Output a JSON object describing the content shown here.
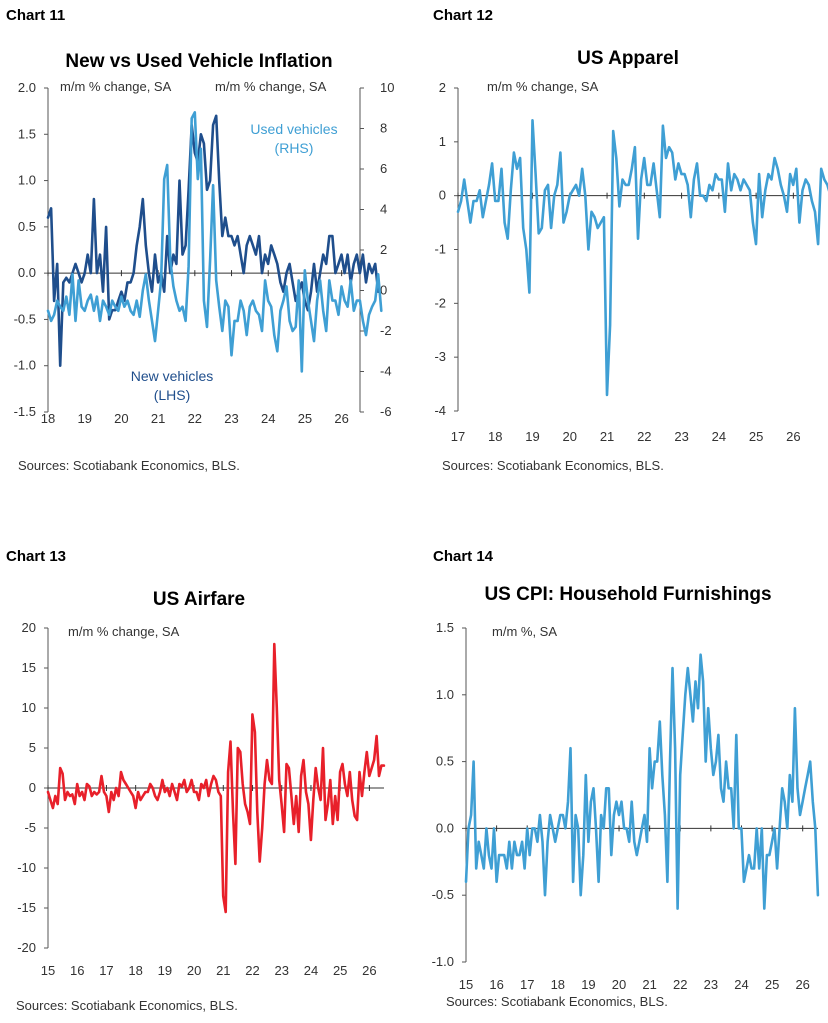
{
  "chart_data": [
    {
      "type": "line",
      "chart_number": "Chart 11",
      "title": "New vs Used Vehicle Inflation",
      "left_unit": "m/m % change, SA",
      "right_unit": "m/m % change, SA",
      "source": "Sources: Scotiabank Economics, BLS.",
      "xlim": [
        2018,
        2026.5
      ],
      "x_ticks": [
        18,
        19,
        20,
        21,
        22,
        23,
        24,
        25,
        26
      ],
      "ylim": [
        -1.5,
        2.0
      ],
      "y_ticks": [
        "2.0",
        "1.5",
        "1.0",
        "0.5",
        "0.0",
        "-0.5",
        "-1.0",
        "-1.5"
      ],
      "y2lim": [
        -6,
        10
      ],
      "y2_ticks": [
        "10",
        "8",
        "6",
        "4",
        "2",
        "0",
        "-2",
        "-4",
        "-6"
      ],
      "series": [
        {
          "name": "New vehicles",
          "label_lines": [
            "New vehicles",
            "(LHS)"
          ],
          "axis": "left",
          "color": "#1f4e8c",
          "x_start": 2018.0,
          "x_step": 0.0833,
          "values": [
            0.6,
            0.7,
            -0.3,
            0.1,
            -1.0,
            -0.1,
            -0.05,
            -0.1,
            0.0,
            0.1,
            0.0,
            -0.1,
            0.0,
            0.2,
            0.0,
            0.8,
            0.0,
            0.2,
            -0.2,
            0.5,
            -0.5,
            -0.4,
            -0.4,
            -0.3,
            -0.2,
            -0.3,
            -0.1,
            -0.1,
            0.0,
            0.3,
            0.5,
            0.8,
            0.3,
            0.0,
            -0.2,
            0.2,
            -0.1,
            0.0,
            -0.2,
            0.4,
            0.0,
            0.2,
            0.1,
            1.0,
            0.2,
            0.3,
            0.9,
            1.6,
            1.3,
            1.2,
            1.5,
            1.4,
            0.9,
            1.0,
            1.6,
            1.7,
            1.0,
            0.4,
            0.6,
            0.4,
            0.4,
            0.3,
            0.4,
            0.2,
            0.0,
            0.3,
            0.4,
            0.3,
            0.2,
            0.4,
            0.0,
            0.2,
            0.1,
            0.3,
            0.2,
            0.1,
            -0.1,
            -0.2,
            0.0,
            0.1,
            -0.1,
            -0.3,
            -0.2,
            -0.1,
            -0.3,
            -0.4,
            -0.2,
            0.1,
            -0.2,
            0.0,
            0.2,
            0.1,
            0.4,
            0.4,
            0.0,
            0.1,
            0.2,
            0.0,
            0.2,
            -0.1,
            0.1,
            0.2,
            0.0,
            0.2,
            -0.1,
            0.1,
            0.0,
            0.1,
            -0.2
          ]
        },
        {
          "name": "Used vehicles",
          "label_lines": [
            "Used vehicles",
            "(RHS)"
          ],
          "axis": "right",
          "color": "#3f9fd4",
          "x_start": 2018.0,
          "x_step": 0.0833,
          "values": [
            -1.0,
            -1.5,
            -1.2,
            -0.5,
            -0.8,
            -1.0,
            -0.3,
            -1.2,
            0.8,
            -1.5,
            0.5,
            -0.8,
            -1.0,
            -0.5,
            -0.2,
            -1.0,
            -0.3,
            -1.5,
            -0.5,
            -0.8,
            -1.2,
            -0.5,
            -0.8,
            -1.0,
            -0.3,
            -0.8,
            -0.5,
            -1.0,
            -1.2,
            -0.5,
            -1.3,
            0.0,
            0.8,
            -0.5,
            -1.5,
            -2.5,
            -1.0,
            0.5,
            5.5,
            6.2,
            1.5,
            0.2,
            -0.5,
            -1.0,
            -0.8,
            -1.5,
            1.2,
            8.5,
            8.8,
            5.5,
            7.0,
            -0.5,
            -1.8,
            1.5,
            5.2,
            0.5,
            -0.8,
            -2.0,
            -0.5,
            -0.8,
            -3.2,
            -1.5,
            -1.5,
            -0.5,
            -1.0,
            -2.2,
            -0.8,
            -0.5,
            -1.0,
            -1.2,
            -2.0,
            0.5,
            -0.5,
            -0.8,
            -2.2,
            -3.0,
            -1.0,
            -0.5,
            0.2,
            -1.5,
            -2.0,
            -1.8,
            0.5,
            -4.0,
            1.0,
            -0.5,
            -1.5,
            -2.5,
            -0.5,
            0.5,
            -1.0,
            -2.0,
            0.5,
            -0.5,
            -0.5,
            -1.2,
            0.2,
            -0.5,
            -0.8,
            0.5,
            -1.0,
            -0.5,
            -0.5,
            -1.5,
            -2.2,
            -1.2,
            -0.8,
            -0.5,
            0.8,
            -1.0
          ]
        }
      ]
    },
    {
      "type": "line",
      "chart_number": "Chart 12",
      "title": "US Apparel",
      "left_unit": "m/m % change, SA",
      "source": "Sources: Scotiabank Economics, BLS.",
      "xlim": [
        2017,
        2026.5
      ],
      "x_ticks": [
        17,
        18,
        19,
        20,
        21,
        22,
        23,
        24,
        25,
        26
      ],
      "ylim": [
        -4,
        2
      ],
      "y_ticks": [
        "2",
        "1",
        "0",
        "-1",
        "-2",
        "-3",
        "-4"
      ],
      "series": [
        {
          "name": "",
          "color": "#3f9fd4",
          "x_start": 2017.0,
          "x_step": 0.0833,
          "values": [
            -0.3,
            -0.1,
            0.3,
            -0.1,
            -0.5,
            -0.1,
            -0.1,
            0.1,
            -0.4,
            -0.1,
            0.2,
            0.6,
            -0.1,
            -0.1,
            0.5,
            -0.5,
            -0.8,
            0.1,
            0.8,
            0.5,
            0.7,
            -0.6,
            -1.0,
            -1.8,
            1.4,
            0.4,
            -0.7,
            -0.6,
            0.1,
            0.2,
            -0.6,
            0.0,
            0.2,
            0.8,
            -0.5,
            -0.3,
            0.0,
            0.1,
            0.2,
            0.0,
            0.5,
            0.0,
            -1.0,
            -0.3,
            -0.4,
            -0.6,
            -0.5,
            -0.4,
            -3.7,
            -2.4,
            1.2,
            0.7,
            -0.2,
            0.3,
            0.2,
            0.2,
            0.5,
            0.9,
            -0.8,
            0.3,
            0.7,
            0.2,
            0.2,
            0.6,
            0.1,
            -0.4,
            1.3,
            0.7,
            0.9,
            0.8,
            0.3,
            0.6,
            0.4,
            0.4,
            0.2,
            -0.4,
            0.3,
            0.6,
            0.0,
            0.0,
            -0.1,
            0.2,
            0.1,
            0.4,
            0.3,
            0.3,
            -0.3,
            0.6,
            0.1,
            0.4,
            0.3,
            0.1,
            0.3,
            0.2,
            0.1,
            -0.5,
            -0.9,
            0.4,
            -0.4,
            0.1,
            0.4,
            0.3,
            0.7,
            0.5,
            0.2,
            0.0,
            -0.3,
            0.4,
            0.2,
            0.5,
            -0.5,
            0.1,
            0.3,
            0.2,
            -0.1,
            -0.3,
            -0.9,
            0.5,
            0.3,
            0.2,
            0.0,
            0.3,
            0.0,
            -0.2,
            0.2,
            0.5,
            0.4,
            0.3,
            0.4,
            0.3,
            1.3,
            1.0,
            0.6
          ]
        }
      ]
    },
    {
      "type": "line",
      "chart_number": "Chart 13",
      "title": "US Airfare",
      "left_unit": "m/m % change, SA",
      "source": "Sources: Scotiabank Economics, BLS.",
      "xlim": [
        2015,
        2026.5
      ],
      "x_ticks": [
        15,
        16,
        17,
        18,
        19,
        20,
        21,
        22,
        23,
        24,
        25,
        26
      ],
      "ylim": [
        -20,
        20
      ],
      "y_ticks": [
        "20",
        "15",
        "10",
        "5",
        "0",
        "-5",
        "-10",
        "-15",
        "-20"
      ],
      "series": [
        {
          "name": "",
          "color": "#e8202a",
          "x_start": 2015.0,
          "x_step": 0.0833,
          "values": [
            -0.5,
            -1.5,
            -2.5,
            -1.0,
            -2.0,
            2.5,
            1.8,
            -1.5,
            -0.5,
            -1.0,
            -0.8,
            -2.0,
            0.5,
            -1.0,
            -0.5,
            -1.5,
            0.5,
            0.2,
            -1.0,
            -0.5,
            -0.8,
            -0.5,
            1.5,
            -0.5,
            -1.0,
            -3.0,
            -0.5,
            -1.5,
            0.0,
            -1.0,
            2.0,
            1.0,
            0.5,
            0.0,
            -0.5,
            -1.0,
            -2.5,
            -0.5,
            -1.5,
            -1.0,
            -0.5,
            -0.5,
            0.5,
            0.0,
            -1.0,
            -1.5,
            -0.5,
            1.0,
            -0.5,
            0.0,
            -1.0,
            0.5,
            -0.5,
            -1.5,
            0.5,
            0.2,
            1.0,
            -0.5,
            0.0,
            1.0,
            -0.5,
            -0.5,
            -1.5,
            0.5,
            0.0,
            1.0,
            -1.0,
            0.5,
            1.5,
            1.0,
            -0.5,
            -1.0,
            -13.5,
            -15.5,
            2.0,
            5.8,
            -3.0,
            -9.5,
            5.0,
            4.5,
            0.5,
            -2.0,
            -3.0,
            -4.5,
            9.2,
            7.0,
            -3.0,
            -9.2,
            -5.0,
            0.5,
            3.5,
            1.0,
            0.5,
            18.0,
            10.0,
            1.0,
            -2.0,
            -5.5,
            3.0,
            2.5,
            -1.0,
            -4.5,
            -1.0,
            -5.5,
            1.5,
            3.5,
            -0.5,
            -2.0,
            -6.5,
            -1.5,
            2.5,
            0.0,
            -1.5,
            5.0,
            -4.0,
            -2.0,
            1.0,
            -4.5,
            -1.0,
            -4.0,
            2.0,
            3.0,
            0.5,
            -1.0,
            2.0,
            -1.5,
            -3.5,
            -4.0,
            2.0,
            -1.0,
            2.0,
            4.5,
            1.5,
            2.5,
            3.5,
            6.5,
            1.5,
            2.8,
            2.8
          ]
        }
      ]
    },
    {
      "type": "line",
      "chart_number": "Chart 14",
      "title": "US CPI: Household Furnishings",
      "left_unit": "m/m %, SA",
      "source": "Sources: Scotiabank Economics, BLS.",
      "xlim": [
        2015,
        2026.5
      ],
      "x_ticks": [
        15,
        16,
        17,
        18,
        19,
        20,
        21,
        22,
        23,
        24,
        25,
        26
      ],
      "ylim": [
        -1.0,
        1.5
      ],
      "y_ticks": [
        "1.5",
        "1.0",
        "0.5",
        "0.0",
        "-0.5",
        "-1.0"
      ],
      "series": [
        {
          "name": "",
          "color": "#3f9fd4",
          "x_start": 2015.0,
          "x_step": 0.0833,
          "values": [
            -0.4,
            0.0,
            0.1,
            0.5,
            -0.3,
            -0.1,
            -0.2,
            -0.3,
            0.0,
            -0.2,
            -0.3,
            0.0,
            -0.4,
            -0.2,
            -0.2,
            -0.2,
            -0.3,
            -0.1,
            -0.3,
            -0.1,
            -0.2,
            -0.2,
            -0.1,
            -0.3,
            0.0,
            -0.2,
            0.0,
            0.0,
            -0.1,
            0.1,
            -0.1,
            -0.5,
            -0.1,
            0.1,
            0.0,
            -0.1,
            0.0,
            0.1,
            0.1,
            0.0,
            0.2,
            0.6,
            -0.4,
            0.1,
            0.0,
            -0.5,
            -0.2,
            0.4,
            -0.1,
            0.2,
            0.3,
            0.0,
            -0.4,
            0.1,
            0.0,
            0.3,
            0.3,
            -0.2,
            0.1,
            0.2,
            0.1,
            0.2,
            0.0,
            0.0,
            -0.1,
            0.2,
            -0.1,
            -0.2,
            -0.1,
            0.0,
            0.1,
            -0.1,
            0.6,
            0.3,
            0.5,
            0.5,
            0.8,
            0.4,
            0.1,
            -0.4,
            0.5,
            1.2,
            0.6,
            -0.6,
            0.4,
            0.7,
            1.0,
            1.2,
            1.0,
            0.8,
            1.1,
            0.9,
            1.3,
            1.1,
            0.5,
            0.9,
            0.6,
            0.4,
            0.5,
            0.7,
            0.3,
            0.2,
            0.5,
            0.3,
            0.3,
            0.0,
            0.7,
            0.0,
            0.0,
            -0.4,
            -0.3,
            -0.2,
            -0.3,
            -0.3,
            0.0,
            -0.3,
            0.0,
            -0.6,
            -0.2,
            -0.2,
            -0.1,
            0.0,
            -0.3,
            0.0,
            0.3,
            0.2,
            0.0,
            0.4,
            0.2,
            0.9,
            0.3,
            0.1,
            0.2,
            0.3,
            0.4,
            0.5,
            0.2,
            0.0,
            -0.5
          ]
        }
      ]
    }
  ]
}
